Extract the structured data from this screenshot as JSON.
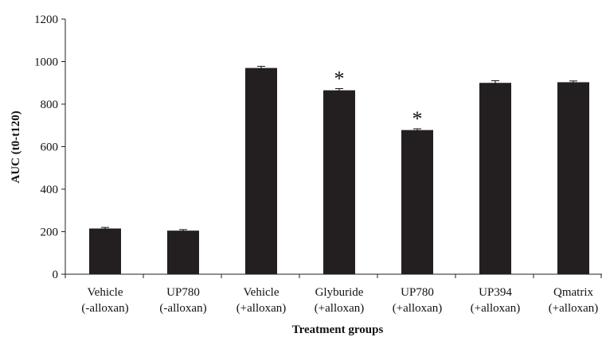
{
  "chart_data": {
    "type": "bar",
    "categories": [
      [
        "Vehicle",
        "(-alloxan)"
      ],
      [
        "UP780",
        "(-alloxan)"
      ],
      [
        "Vehicle",
        "(+alloxan)"
      ],
      [
        "Glyburide",
        "(+alloxan)"
      ],
      [
        "UP780",
        "(+alloxan)"
      ],
      [
        "UP394",
        "(+alloxan)"
      ],
      [
        "Qmatrix",
        "(+alloxan)"
      ]
    ],
    "values": [
      215,
      205,
      970,
      865,
      678,
      900,
      903
    ],
    "errors": [
      5,
      5,
      8,
      8,
      6,
      10,
      6
    ],
    "annotations": [
      "",
      "",
      "",
      "*",
      "*",
      "",
      ""
    ],
    "xlabel": "Treatment groups",
    "ylabel": "AUC (t0-t120)",
    "ylim": [
      0,
      1200
    ],
    "yticks": [
      0,
      200,
      400,
      600,
      800,
      1000,
      1200
    ],
    "grid": false,
    "legend": "none",
    "bar_color": "#231f20"
  }
}
